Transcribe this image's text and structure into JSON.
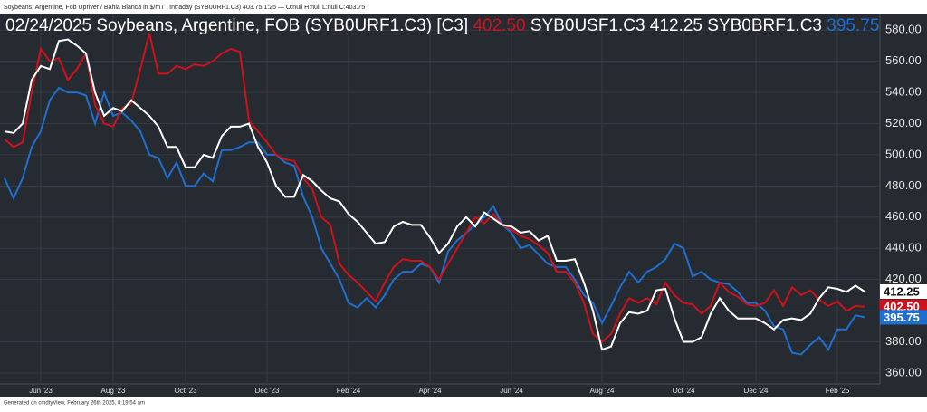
{
  "header": {
    "text": "Soybeans, Argentine, Fob Upriver / Bahia Blanca in $/mT , Intraday (SYB0URF1.C3) 403.75 1:25 — O:null H:null L:null C:403.75"
  },
  "footer": {
    "text": "Generated on cmdtyView, February 26th 2025, 8:19:54 am"
  },
  "chart_data": {
    "type": "line",
    "title": "02/24/2025 Soybeans, Argentine, FOB",
    "categories": [
      null,
      null,
      null,
      null,
      "Jun '23",
      null,
      null,
      null,
      null,
      null,
      null,
      null,
      "Aug '23",
      null,
      null,
      null,
      null,
      null,
      null,
      null,
      "Oct '23",
      null,
      null,
      null,
      null,
      null,
      null,
      null,
      null,
      "Dec '23",
      null,
      null,
      null,
      null,
      null,
      null,
      null,
      null,
      "Feb '24",
      null,
      null,
      null,
      null,
      null,
      null,
      null,
      null,
      "Apr '24",
      null,
      null,
      null,
      null,
      null,
      null,
      null,
      null,
      "Jun '24",
      null,
      null,
      null,
      null,
      null,
      null,
      null,
      null,
      null,
      "Aug '24",
      null,
      null,
      null,
      null,
      null,
      null,
      null,
      null,
      "Oct '24",
      null,
      null,
      null,
      null,
      null,
      null,
      null,
      "Dec '24",
      null,
      null,
      null,
      null,
      null,
      null,
      null,
      null,
      "Feb '25",
      null,
      null,
      null
    ],
    "series": [
      {
        "name": "(SYB0URF1.C3) [C3]",
        "color": "#d0111b",
        "last_label": "402.50",
        "values": [
          510,
          505,
          508,
          540,
          568,
          560,
          562,
          548,
          555,
          565,
          532,
          520,
          518,
          530,
          533,
          555,
          578,
          552,
          552,
          557,
          555,
          558,
          557,
          560,
          565,
          568,
          566,
          522,
          515,
          508,
          500,
          497,
          496,
          485,
          478,
          460,
          455,
          430,
          423,
          418,
          412,
          406,
          418,
          428,
          433,
          432,
          432,
          428,
          420,
          430,
          440,
          450,
          460,
          456,
          462,
          455,
          452,
          448,
          446,
          442,
          437,
          425,
          425,
          418,
          405,
          385,
          380,
          385,
          398,
          408,
          405,
          408,
          404,
          418,
          410,
          405,
          404,
          398,
          403,
          418,
          412,
          409,
          404,
          403,
          405,
          413,
          403,
          415,
          410,
          413,
          407,
          403,
          406,
          400,
          403,
          402.5
        ]
      },
      {
        "name": "SYB0USF1.C3",
        "color": "#ffffff",
        "last_label": "412.25",
        "values": [
          515,
          514,
          520,
          548,
          557,
          555,
          573,
          574,
          570,
          565,
          540,
          525,
          530,
          528,
          535,
          530,
          525,
          518,
          505,
          505,
          492,
          492,
          500,
          498,
          512,
          518,
          518,
          520,
          505,
          495,
          480,
          473,
          473,
          487,
          483,
          477,
          472,
          470,
          462,
          457,
          450,
          443,
          444,
          454,
          457,
          455,
          455,
          447,
          437,
          443,
          454,
          460,
          454,
          463,
          459,
          455,
          454,
          450,
          451,
          445,
          448,
          432,
          432,
          433,
          418,
          400,
          375,
          377,
          392,
          399,
          398,
          400,
          413,
          414,
          395,
          380,
          380,
          383,
          398,
          408,
          400,
          395,
          395,
          395,
          392,
          388,
          394,
          395,
          394,
          398,
          408,
          415,
          414,
          412,
          416,
          412.25
        ]
      },
      {
        "name": "SYB0BRF1.C3",
        "color": "#1f6fd1",
        "last_label": "395.75",
        "values": [
          485,
          472,
          485,
          505,
          515,
          535,
          543,
          540,
          540,
          538,
          520,
          540,
          525,
          527,
          522,
          515,
          500,
          498,
          485,
          495,
          480,
          480,
          488,
          483,
          503,
          503,
          505,
          508,
          508,
          500,
          500,
          495,
          493,
          473,
          460,
          440,
          430,
          420,
          405,
          402,
          408,
          402,
          410,
          420,
          425,
          425,
          430,
          428,
          418,
          438,
          445,
          450,
          455,
          460,
          467,
          455,
          450,
          440,
          442,
          436,
          430,
          428,
          428,
          420,
          410,
          405,
          392,
          403,
          415,
          425,
          418,
          425,
          428,
          433,
          443,
          440,
          422,
          425,
          420,
          418,
          417,
          412,
          405,
          405,
          400,
          390,
          388,
          373,
          372,
          378,
          383,
          375,
          388,
          388,
          397,
          395.75
        ]
      }
    ],
    "ylim": [
      353,
      590
    ],
    "yticks": [
      {
        "value": 360,
        "label": "360.00"
      },
      {
        "value": 380,
        "label": "380.00"
      },
      {
        "value": 400,
        "label": "400.00"
      },
      {
        "value": 420,
        "label": "420.00"
      },
      {
        "value": 440,
        "label": "440.00"
      },
      {
        "value": 460,
        "label": "460.00"
      },
      {
        "value": 480,
        "label": "480.00"
      },
      {
        "value": 500,
        "label": "500.00"
      },
      {
        "value": 520,
        "label": "520.00"
      },
      {
        "value": 540,
        "label": "540.00"
      },
      {
        "value": 560,
        "label": "560.00"
      },
      {
        "value": 580,
        "label": "580.00"
      }
    ],
    "grid": true
  }
}
